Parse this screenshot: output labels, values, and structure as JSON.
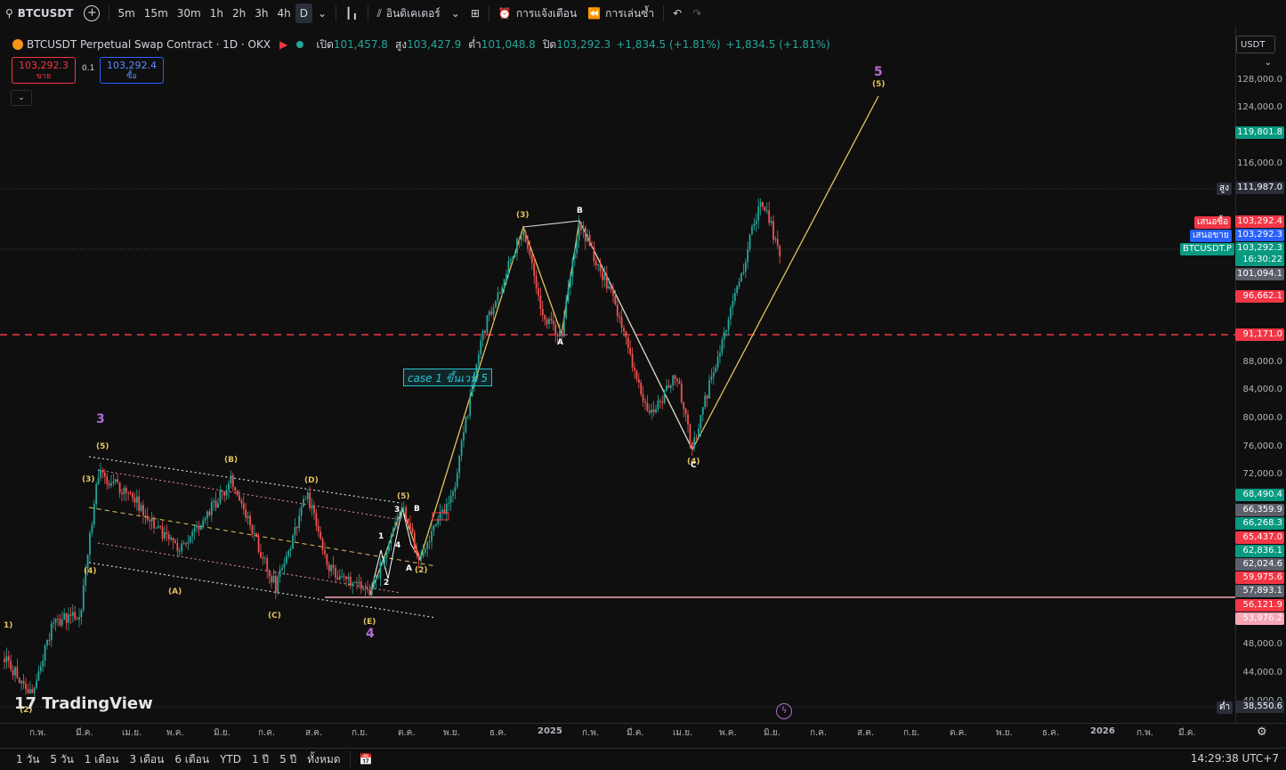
{
  "toolbar": {
    "symbol": "BTCUSDT",
    "timeframes": [
      "5m",
      "15m",
      "30m",
      "1h",
      "2h",
      "3h",
      "4h",
      "D"
    ],
    "active_timeframe": "D",
    "indicators_label": "อินดิเคเตอร์",
    "alerts_label": "การแจ้งเตือน",
    "replay_label": "การเล่นซ้ำ"
  },
  "legend": {
    "title": "BTCUSDT Perpetual Swap Contract · 1D · OKX",
    "open_label": "เปิด",
    "open": "101,457.8",
    "high_label": "สูง",
    "high": "103,427.9",
    "low_label": "ต่ำ",
    "low": "101,048.8",
    "close_label": "ปิด",
    "close": "103,292.3",
    "change": "+1,834.5 (+1.81%)",
    "change2": "+1,834.5 (+1.81%)"
  },
  "trade": {
    "sell_price": "103,292.3",
    "sell_label": "ขาย",
    "spread": "0.1",
    "buy_price": "103,292.4",
    "buy_label": "ซื้อ"
  },
  "axis": {
    "currency": "USDT",
    "ticks": [
      "128,000.0",
      "124,000.0",
      "116,000.0",
      "108,000.0",
      "92,000.0",
      "88,000.0",
      "84,000.0",
      "80,000.0",
      "76,000.0",
      "72,000.0",
      "48,000.0",
      "44,000.0",
      "40,000.0"
    ],
    "badges": [
      {
        "text": "119,801.8",
        "color": "#089981"
      },
      {
        "text": "111,987.0",
        "color": "#2a2e39"
      },
      {
        "text": "103,292.4",
        "color": "#f23645"
      },
      {
        "text": "103,292.3",
        "color": "#2962ff"
      },
      {
        "text": "103,292.3",
        "color": "#089981"
      },
      {
        "text": "16:30:22",
        "color": "#089981"
      },
      {
        "text": "101,094.1",
        "color": "#5d606b"
      },
      {
        "text": "96,662.1",
        "color": "#f23645"
      },
      {
        "text": "91,171.0",
        "color": "#f23645"
      },
      {
        "text": "68,490.4",
        "color": "#089981"
      },
      {
        "text": "66,359.9",
        "color": "#5d606b"
      },
      {
        "text": "66,268.3",
        "color": "#089981"
      },
      {
        "text": "65,437.0",
        "color": "#f23645"
      },
      {
        "text": "62,836.1",
        "color": "#089981"
      },
      {
        "text": "62,024.6",
        "color": "#5d606b"
      },
      {
        "text": "59,975.6",
        "color": "#f23645"
      },
      {
        "text": "57,893.1",
        "color": "#5d606b"
      },
      {
        "text": "56,121.9",
        "color": "#f23645"
      },
      {
        "text": "53,976.2",
        "color": "#f7a6b5"
      },
      {
        "text": "38,550.6",
        "color": "#2a2e39"
      }
    ],
    "tag_high": "สูง",
    "tag_low": "ต่ำ",
    "tag_bid": "เสนอซื้อ",
    "tag_ask": "เสนอขาย",
    "tag_symbol": "BTCUSDT.P"
  },
  "waves": {
    "big3": "3",
    "big4": "4",
    "big5": "5",
    "w5": "(5)",
    "w3": "(3)",
    "w4": "(4)",
    "wA": "(A)",
    "wB": "(B)",
    "wC": "(C)",
    "wD": "(D)",
    "wE": "(E)",
    "w5b": "(5)",
    "w2": "(2)",
    "w3b": "(3)",
    "w4b": "(4)",
    "w5c": "(5)",
    "w1": "1)",
    "w2b": "(2)",
    "s1": "1",
    "s2": "2",
    "s3": "3",
    "s4": "4",
    "sA": "A",
    "sB": "B",
    "sA2": "A",
    "sB2": "B",
    "sC2": "C"
  },
  "case_label": "case 1 ขึ้นเวฟ 5",
  "time_labels": [
    "ก.พ.",
    "มี.ค.",
    "เม.ย.",
    "พ.ค.",
    "มิ.ย.",
    "ก.ค.",
    "ส.ค.",
    "ก.ย.",
    "ต.ค.",
    "พ.ย.",
    "ธ.ค.",
    "2025",
    "ก.พ.",
    "มี.ค.",
    "เม.ย.",
    "พ.ค.",
    "มิ.ย.",
    "ก.ค.",
    "ส.ค.",
    "ก.ย.",
    "ต.ค.",
    "พ.ย.",
    "ธ.ค.",
    "2026",
    "ก.พ.",
    "มี.ค."
  ],
  "ranges": [
    "1 วัน",
    "5 วัน",
    "1 เดือน",
    "3 เดือน",
    "6 เดือน",
    "YTD",
    "1 ปี",
    "5 ปี",
    "ทั้งหมด"
  ],
  "clock": "14:29:38 UTC+7",
  "watermark": "TradingView"
}
